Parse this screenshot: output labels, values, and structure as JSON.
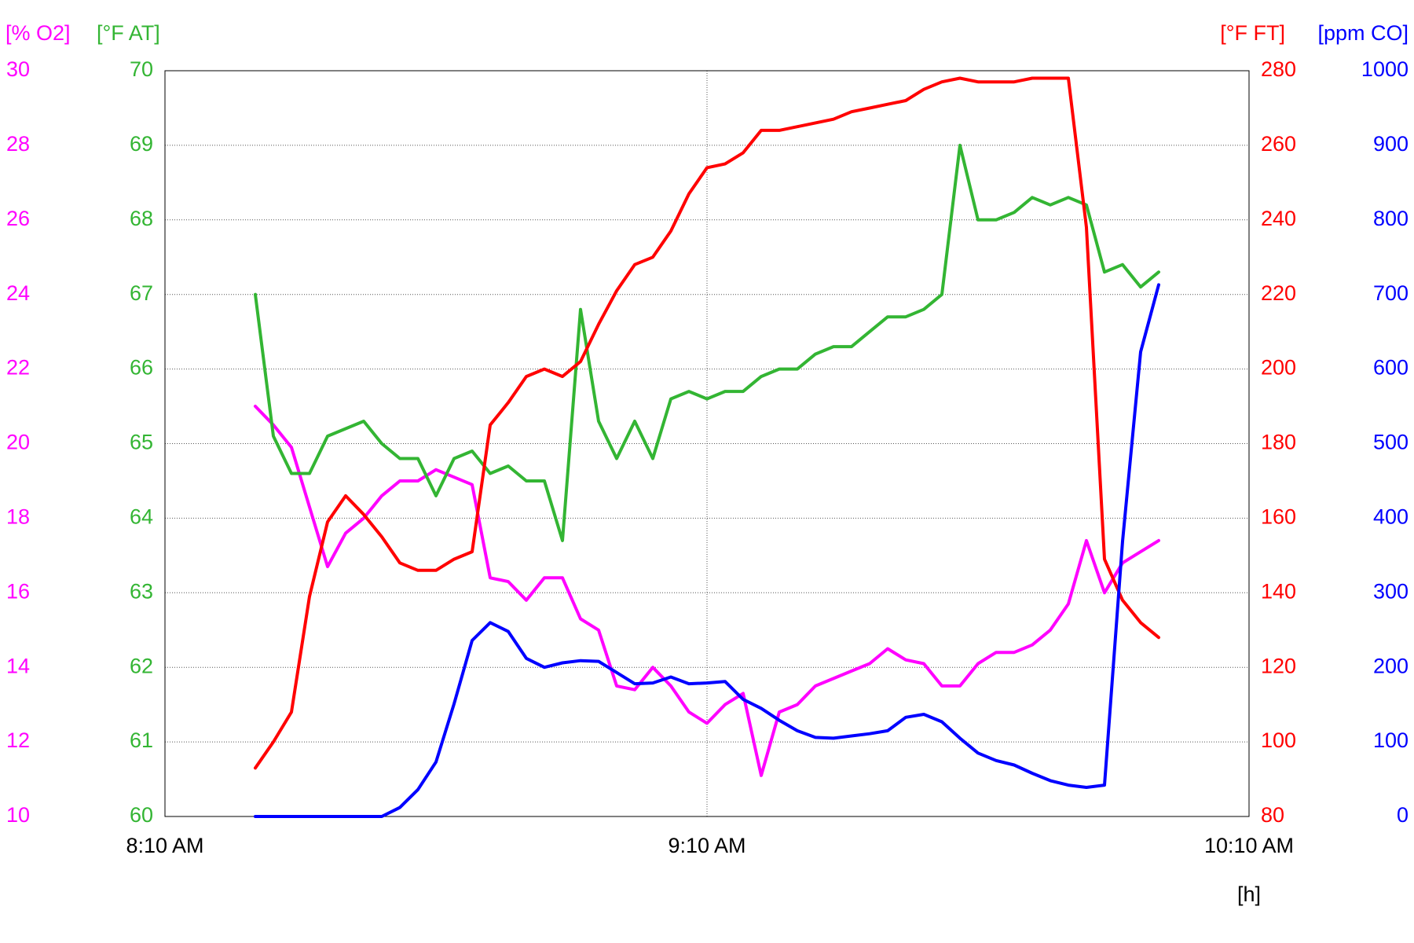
{
  "chart_data": {
    "type": "line",
    "x_label": "[h]",
    "x": [
      500,
      502,
      504,
      506,
      508,
      510,
      512,
      514,
      516,
      518,
      520,
      522,
      524,
      526,
      528,
      530,
      532,
      534,
      536,
      538,
      540,
      542,
      544,
      546,
      548,
      550,
      552,
      554,
      556,
      558,
      560,
      562,
      564,
      566,
      568,
      570,
      572,
      574,
      576,
      578,
      580,
      582,
      584,
      586,
      588,
      590,
      592,
      594,
      596,
      598,
      600
    ],
    "xlim": [
      490,
      610
    ],
    "xticks": [
      {
        "value": 490,
        "label": "8:10 AM"
      },
      {
        "value": 550,
        "label": "9:10 AM"
      },
      {
        "value": 610,
        "label": "10:10 AM"
      }
    ],
    "y_axes": [
      {
        "label": "[% O2]",
        "color": "#ff00ff",
        "side": "left",
        "lim": [
          10,
          30
        ],
        "ticks": [
          10,
          12,
          14,
          16,
          18,
          20,
          22,
          24,
          26,
          28,
          30
        ]
      },
      {
        "label": "[°F AT]",
        "color": "#33b533",
        "side": "left",
        "lim": [
          60,
          70
        ],
        "ticks": [
          60,
          61,
          62,
          63,
          64,
          65,
          66,
          67,
          68,
          69,
          70
        ],
        "grid": true
      },
      {
        "label": "[°F FT]",
        "color": "#ff0000",
        "side": "right",
        "lim": [
          80,
          280
        ],
        "ticks": [
          80,
          100,
          120,
          140,
          160,
          180,
          200,
          220,
          240,
          260,
          280
        ]
      },
      {
        "label": "[ppm CO]",
        "color": "#0000ff",
        "side": "right",
        "lim": [
          0,
          1000
        ],
        "ticks": [
          0,
          100,
          200,
          300,
          400,
          500,
          600,
          700,
          800,
          900,
          1000
        ]
      }
    ],
    "series": [
      {
        "axis": 0,
        "color": "#ff00ff",
        "values": [
          21.0,
          20.5,
          19.9,
          18.3,
          16.7,
          17.6,
          18.0,
          18.6,
          19.0,
          19.0,
          19.3,
          19.1,
          18.9,
          16.4,
          16.3,
          15.8,
          16.4,
          16.4,
          15.3,
          15.0,
          13.5,
          13.4,
          14.0,
          13.5,
          12.8,
          12.5,
          13.0,
          13.3,
          11.1,
          12.8,
          13.0,
          13.5,
          13.7,
          13.9,
          14.1,
          14.5,
          14.2,
          14.1,
          13.5,
          13.5,
          14.1,
          14.4,
          14.4,
          14.6,
          15.0,
          15.7,
          17.4,
          16.0,
          16.8,
          17.1,
          17.4
        ]
      },
      {
        "axis": 1,
        "color": "#33b533",
        "values": [
          67.0,
          65.1,
          64.6,
          64.6,
          65.1,
          65.2,
          65.3,
          65.0,
          64.8,
          64.8,
          64.3,
          64.8,
          64.9,
          64.6,
          64.7,
          64.5,
          64.5,
          63.7,
          66.8,
          65.3,
          64.8,
          65.3,
          64.8,
          65.6,
          65.7,
          65.6,
          65.7,
          65.7,
          65.9,
          66.0,
          66.0,
          66.2,
          66.3,
          66.3,
          66.5,
          66.7,
          66.7,
          66.8,
          67.0,
          69.0,
          68.0,
          68.0,
          68.1,
          68.3,
          68.2,
          68.3,
          68.2,
          67.3,
          67.4,
          67.1,
          67.3
        ]
      },
      {
        "axis": 2,
        "color": "#ff0000",
        "values": [
          93,
          100,
          108,
          139,
          159,
          166,
          161,
          155,
          148,
          146,
          146,
          149,
          151,
          185,
          191,
          198,
          200,
          198,
          202,
          212,
          221,
          228,
          230,
          237,
          247,
          254,
          255,
          258,
          264,
          264,
          265,
          266,
          267,
          269,
          270,
          271,
          272,
          275,
          277,
          278,
          277,
          277,
          277,
          278,
          278,
          278,
          238,
          149,
          138,
          132,
          128
        ]
      },
      {
        "axis": 3,
        "color": "#0000ff",
        "values": [
          0,
          0,
          0,
          0,
          0,
          0,
          0,
          0,
          12,
          36,
          73,
          151,
          236,
          260,
          248,
          212,
          200,
          206,
          209,
          208,
          193,
          178,
          179,
          187,
          178,
          179,
          181,
          157,
          145,
          129,
          115,
          106,
          105,
          108,
          111,
          115,
          133,
          137,
          127,
          105,
          85,
          75,
          69,
          58,
          48,
          42,
          39,
          42,
          369,
          623,
          713
        ]
      }
    ]
  }
}
